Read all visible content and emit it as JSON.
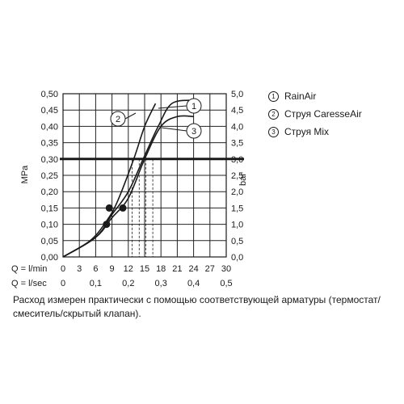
{
  "chart_data": {
    "type": "line",
    "y_left": {
      "label": "MPa",
      "ticks": [
        "0,00",
        "0,05",
        "0,10",
        "0,15",
        "0,20",
        "0,25",
        "0,30",
        "0,35",
        "0,40",
        "0,45",
        "0,50"
      ],
      "range": [
        0,
        0.5
      ]
    },
    "y_right": {
      "label": "bar",
      "ticks": [
        "0,0",
        "0,5",
        "1,0",
        "1,5",
        "2,0",
        "2,5",
        "3,0",
        "3,5",
        "4,0",
        "4,5",
        "5,0"
      ],
      "range": [
        0,
        5
      ]
    },
    "x_lmin": {
      "label": "Q = l/min",
      "ticks": [
        "0",
        "3",
        "6",
        "9",
        "12",
        "15",
        "18",
        "21",
        "24",
        "27",
        "30"
      ],
      "range": [
        0,
        30
      ]
    },
    "x_lsec": {
      "label": "Q = l/sec",
      "ticks": [
        "0",
        "0,1",
        "0,2",
        "0,3",
        "0,4",
        "0,5"
      ]
    },
    "reference_line": {
      "y": 0.3
    },
    "series": [
      {
        "name": "RainAir",
        "marker": "1",
        "points": [
          [
            0,
            0
          ],
          [
            6,
            0.06
          ],
          [
            9,
            0.13
          ],
          [
            12,
            0.2
          ],
          [
            15,
            0.31
          ],
          [
            17.5,
            0.4
          ],
          [
            20,
            0.47
          ],
          [
            24,
            0.48
          ]
        ]
      },
      {
        "name": "Струя CaresseAir",
        "marker": "2",
        "points": [
          [
            0,
            0
          ],
          [
            5,
            0.05
          ],
          [
            8,
            0.11
          ],
          [
            10,
            0.17
          ],
          [
            13,
            0.3
          ],
          [
            15,
            0.4
          ],
          [
            17,
            0.47
          ]
        ]
      },
      {
        "name": "Струя Mix",
        "marker": "3",
        "points": [
          [
            0,
            0
          ],
          [
            6,
            0.06
          ],
          [
            9,
            0.12
          ],
          [
            12,
            0.18
          ],
          [
            15,
            0.3
          ],
          [
            18,
            0.4
          ],
          [
            21,
            0.43
          ],
          [
            24,
            0.43
          ]
        ]
      }
    ],
    "markers": [
      {
        "x": 8.5,
        "y": 0.15
      },
      {
        "x": 8,
        "y": 0.1
      },
      {
        "x": 11,
        "y": 0.15
      }
    ],
    "dashed_verticals": [
      12.7,
      14,
      15.2,
      16.5
    ],
    "grid": true
  },
  "legend": [
    {
      "num": "1",
      "label": "RainAir"
    },
    {
      "num": "2",
      "label": "Струя CaresseAir"
    },
    {
      "num": "3",
      "label": "Струя Mix"
    }
  ],
  "caption": "Расход измерен практически с помощью соответствующей арматуры (термостат/смеситель/скрытый клапан).",
  "colors": {
    "ink": "#1a1a1a",
    "grid": "#222222"
  }
}
